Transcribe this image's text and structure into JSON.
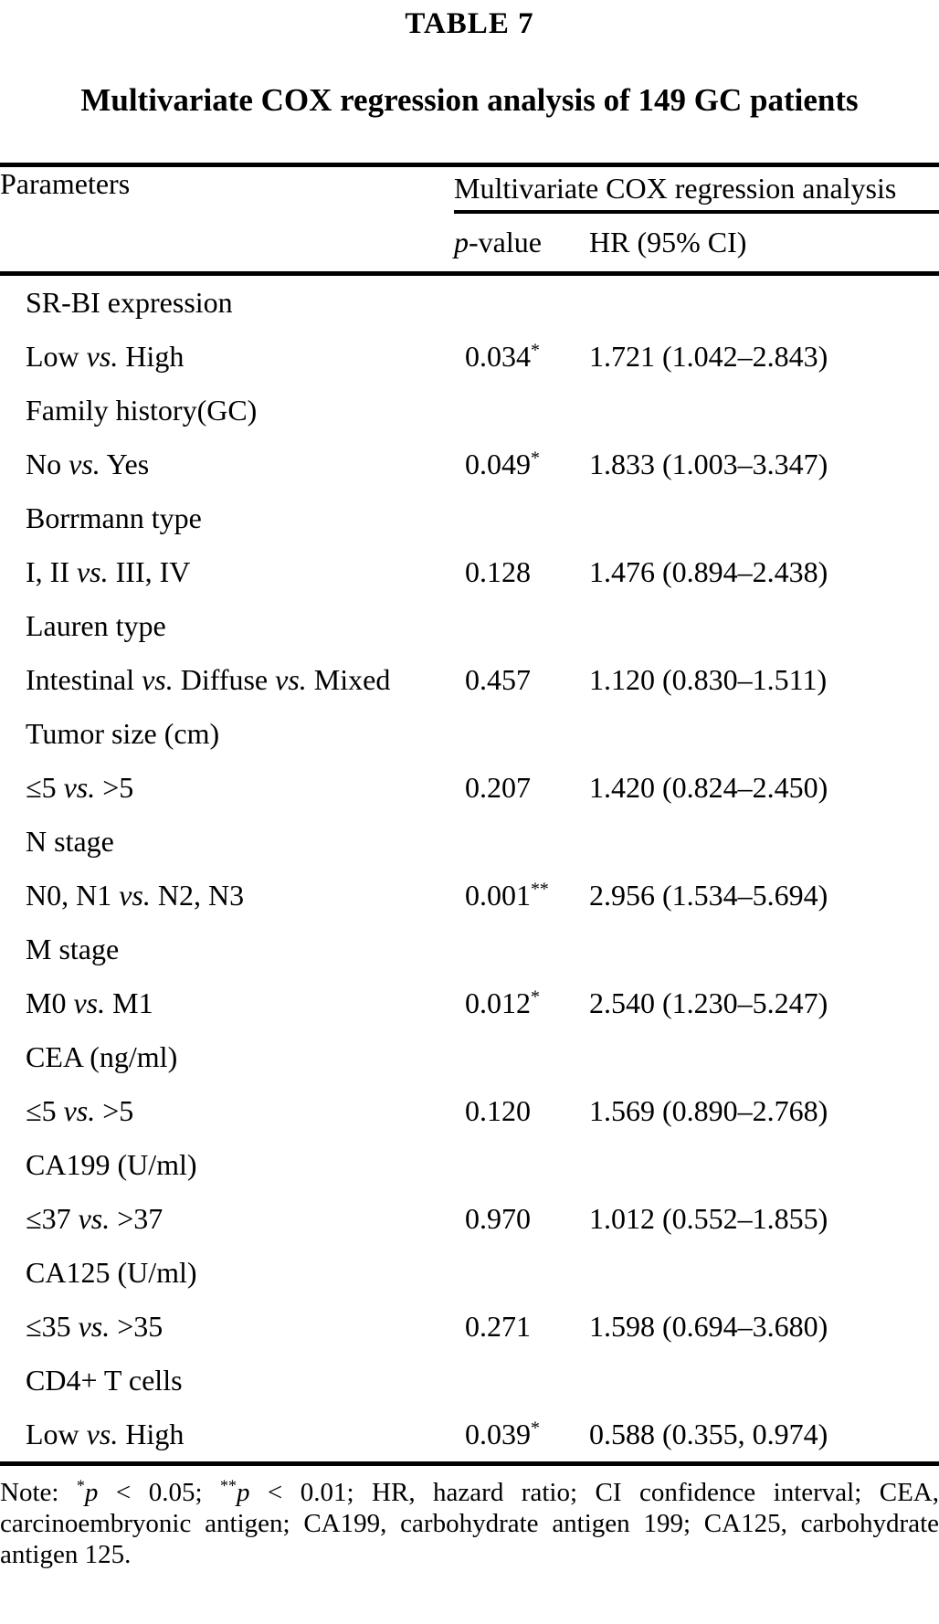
{
  "page": {
    "label": "TABLE 7",
    "title": "Multivariate COX regression analysis of 149 GC patients"
  },
  "table": {
    "headers": {
      "parameters": "Parameters",
      "group": "Multivariate COX regression analysis",
      "p_value": "p-value",
      "hr": "HR (95% CI)"
    },
    "rows": [
      {
        "label": "SR-BI expression",
        "p": "",
        "hr": ""
      },
      {
        "label": "Low vs. High",
        "p": "0.034*",
        "hr": "1.721 (1.042–2.843)"
      },
      {
        "label": "Family history(GC)",
        "p": "",
        "hr": ""
      },
      {
        "label": "No vs. Yes",
        "p": "0.049*",
        "hr": "1.833 (1.003–3.347)"
      },
      {
        "label": "Borrmann type",
        "p": "",
        "hr": ""
      },
      {
        "label": "I, II vs. III, IV",
        "p": "0.128",
        "hr": "1.476 (0.894–2.438)"
      },
      {
        "label": "Lauren type",
        "p": "",
        "hr": ""
      },
      {
        "label": "Intestinal vs. Diffuse vs. Mixed",
        "p": "0.457",
        "hr": "1.120 (0.830–1.511)"
      },
      {
        "label": "Tumor size (cm)",
        "p": "",
        "hr": ""
      },
      {
        "label": "≤5 vs. >5",
        "p": "0.207",
        "hr": "1.420 (0.824–2.450)"
      },
      {
        "label": "N stage",
        "p": "",
        "hr": ""
      },
      {
        "label": "N0, N1 vs. N2, N3",
        "p": "0.001**",
        "hr": "2.956 (1.534–5.694)"
      },
      {
        "label": "M stage",
        "p": "",
        "hr": ""
      },
      {
        "label": "M0 vs. M1",
        "p": "0.012*",
        "hr": "2.540 (1.230–5.247)"
      },
      {
        "label": "CEA (ng/ml)",
        "p": "",
        "hr": ""
      },
      {
        "label": "≤5 vs. >5",
        "p": "0.120",
        "hr": "1.569 (0.890–2.768)"
      },
      {
        "label": "CA199 (U/ml)",
        "p": "",
        "hr": ""
      },
      {
        "label": "≤37 vs. >37",
        "p": "0.970",
        "hr": "1.012 (0.552–1.855)"
      },
      {
        "label": "CA125 (U/ml)",
        "p": "",
        "hr": ""
      },
      {
        "label": "≤35 vs. >35",
        "p": "0.271",
        "hr": "1.598 (0.694–3.680)"
      },
      {
        "label": "CD4+ T cells",
        "p": "",
        "hr": ""
      },
      {
        "label": "Low vs. High",
        "p": "0.039*",
        "hr": "0.588 (0.355, 0.974)"
      }
    ]
  },
  "note": "Note: *p < 0.05; **p < 0.01; HR, hazard ratio; CI confidence interval; CEA, carcinoembryonic antigen; CA199, carbohydrate antigen 199; CA125, carbohydrate antigen 125."
}
